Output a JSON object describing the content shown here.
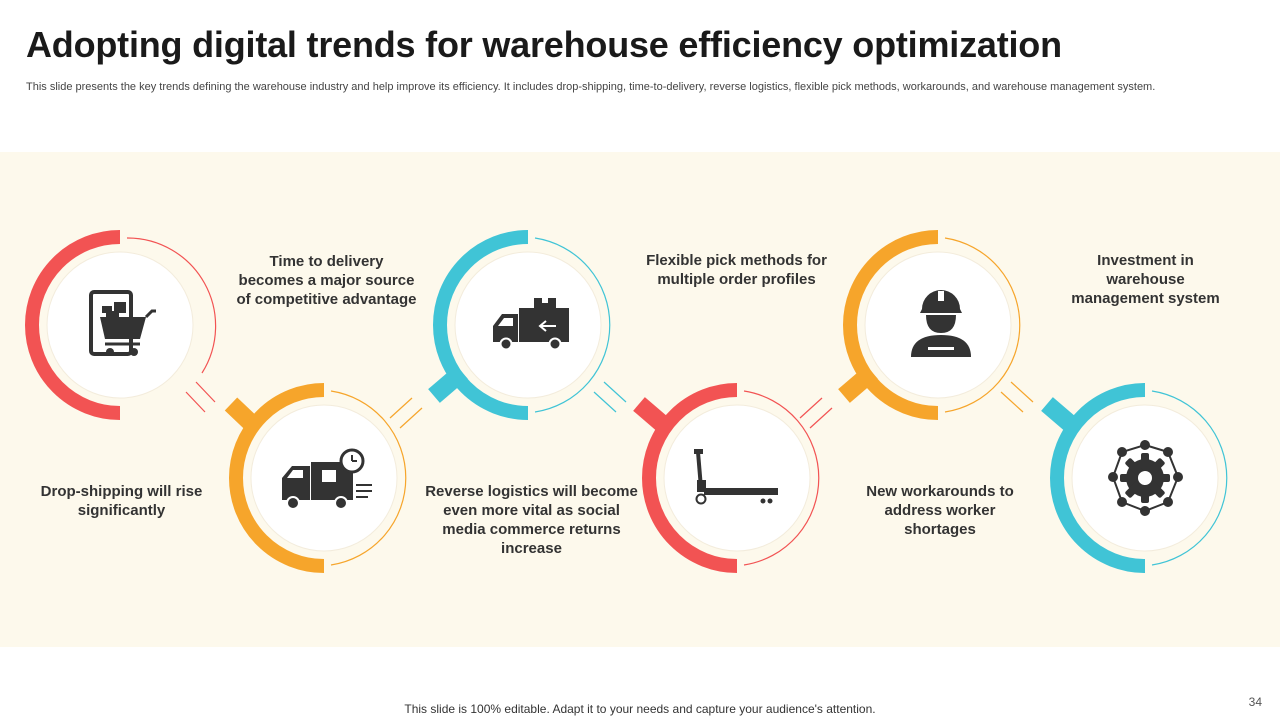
{
  "slide": {
    "title": "Adopting digital trends for warehouse efficiency optimization",
    "subtitle": "This slide presents the key trends defining the warehouse industry and help improve its efficiency.  It includes drop-shipping, time-to-delivery, reverse logistics, flexible pick methods, workarounds, and warehouse management system.",
    "footer": "This slide is 100% editable. Adapt it to your needs and capture your audience's attention.",
    "page_number": "34"
  },
  "colors": {
    "red": "#f25353",
    "orange": "#f6a52b",
    "teal": "#40c4d6",
    "background_band": "#fdf9ec",
    "icon": "#333333"
  },
  "trends": [
    {
      "label": "Drop-shipping will rise significantly",
      "icon": "tablet-shopping-cart-icon",
      "color": "red"
    },
    {
      "label": "Time to delivery becomes a major source of competitive advantage",
      "icon": "delivery-truck-clock-icon",
      "color": "orange"
    },
    {
      "label": "Reverse logistics will become even more vital as social media commerce returns increase",
      "icon": "reverse-truck-icon",
      "color": "teal"
    },
    {
      "label": "Flexible pick methods for multiple order profiles",
      "icon": "pallet-jack-icon",
      "color": "red"
    },
    {
      "label": "New workarounds to address worker shortages",
      "icon": "worker-hardhat-icon",
      "color": "orange"
    },
    {
      "label": "Investment in warehouse management system",
      "icon": "gear-network-icon",
      "color": "teal"
    }
  ]
}
